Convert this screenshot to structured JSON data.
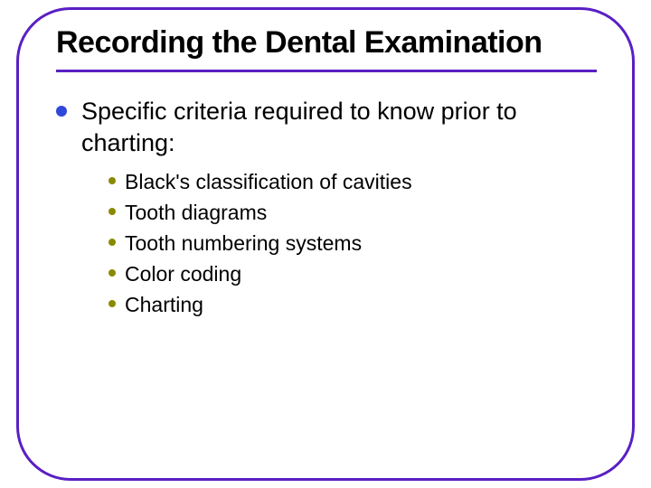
{
  "colors": {
    "frame_border": "#5a1fc4",
    "title_text": "#000000",
    "rule": "#5a1fc4",
    "lead_bullet": "#2f48d9",
    "lead_text": "#000000",
    "sub_bullet": "#8a8a00",
    "sub_text": "#000000"
  },
  "typography": {
    "title_fontsize": 34,
    "lead_fontsize": 27,
    "sub_fontsize": 23
  },
  "title": "Recording the Dental Examination",
  "lead": "Specific criteria required to know prior to charting:",
  "sub_items": [
    "Black's classification of cavities",
    "Tooth diagrams",
    "Tooth numbering systems",
    "Color coding",
    "Charting"
  ]
}
